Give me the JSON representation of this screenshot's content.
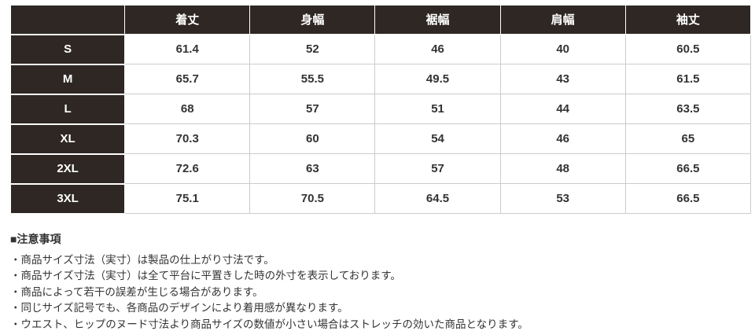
{
  "colors": {
    "header_bg": "#2e2723",
    "header_text": "#ffffff",
    "cell_border": "#cccccc",
    "body_text": "#333333"
  },
  "size_chart": {
    "corner_label": "",
    "columns": [
      "着丈",
      "身幅",
      "裾幅",
      "肩幅",
      "袖丈"
    ],
    "rows": [
      {
        "size": "S",
        "values": [
          "61.4",
          "52",
          "46",
          "40",
          "60.5"
        ]
      },
      {
        "size": "M",
        "values": [
          "65.7",
          "55.5",
          "49.5",
          "43",
          "61.5"
        ]
      },
      {
        "size": "L",
        "values": [
          "68",
          "57",
          "51",
          "44",
          "63.5"
        ]
      },
      {
        "size": "XL",
        "values": [
          "70.3",
          "60",
          "54",
          "46",
          "65"
        ]
      },
      {
        "size": "2XL",
        "values": [
          "72.6",
          "63",
          "57",
          "48",
          "66.5"
        ]
      },
      {
        "size": "3XL",
        "values": [
          "75.1",
          "70.5",
          "64.5",
          "53",
          "66.5"
        ]
      }
    ]
  },
  "notes": {
    "heading": "■注意事項",
    "items": [
      "・商品サイズ寸法（実寸）は製品の仕上がり寸法です。",
      "・商品サイズ寸法（実寸）は全て平台に平置きした時の外寸を表示しております。",
      "・商品によって若干の誤差が生じる場合があります。",
      "・同じサイズ記号でも、各商品のデザインにより着用感が異なります。",
      "・ウエスト、ヒップのヌード寸法より商品サイズの数値が小さい場合はストレッチの効いた商品となります。"
    ]
  }
}
